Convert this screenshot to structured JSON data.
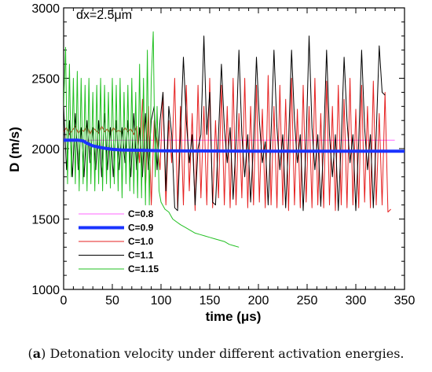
{
  "chart_data": {
    "type": "line",
    "annotation": "dx=2.5μm",
    "xlabel": "time (μs)",
    "ylabel": "D (m/s)",
    "xlim": [
      0,
      350
    ],
    "ylim": [
      1000,
      3000
    ],
    "xticks": [
      0,
      50,
      100,
      150,
      200,
      250,
      300,
      350
    ],
    "yticks": [
      1000,
      1500,
      2000,
      2500,
      3000
    ],
    "legend_position": "lower-left",
    "series": [
      {
        "name": "C=0.8",
        "color": "#ff66ff",
        "width": 1,
        "x": [
          0,
          340
        ],
        "y": [
          2060,
          2060
        ]
      },
      {
        "name": "C=0.9",
        "color": "#1a33ff",
        "width": 4,
        "x": [
          0,
          15,
          20,
          25,
          30,
          40,
          50,
          60,
          80,
          100,
          150,
          200,
          250,
          300,
          350
        ],
        "y": [
          2060,
          2060,
          2055,
          2035,
          2020,
          2005,
          1995,
          1990,
          1988,
          1985,
          1983,
          1982,
          1982,
          1982,
          1982
        ]
      },
      {
        "name": "C=1.0",
        "color": "#e62020",
        "width": 1,
        "x": [
          0,
          3,
          6,
          9,
          12,
          15,
          18,
          21,
          24,
          27,
          30,
          33,
          36,
          39,
          42,
          45,
          48,
          51,
          54,
          57,
          60,
          63,
          66,
          69,
          72,
          75,
          78,
          81,
          84,
          87,
          90,
          93,
          96,
          99,
          102,
          105,
          108,
          111,
          114,
          117,
          120,
          123,
          126,
          129,
          132,
          135,
          138,
          141,
          144,
          147,
          150,
          153,
          156,
          159,
          162,
          165,
          168,
          171,
          174,
          177,
          180,
          183,
          186,
          189,
          192,
          195,
          198,
          201,
          204,
          207,
          210,
          213,
          216,
          219,
          222,
          225,
          228,
          231,
          234,
          237,
          240,
          243,
          246,
          249,
          252,
          255,
          258,
          261,
          264,
          267,
          270,
          273,
          276,
          279,
          282,
          285,
          288,
          291,
          294,
          297,
          300,
          303,
          306,
          309,
          312,
          315,
          318,
          321,
          324,
          327,
          330,
          333,
          336
        ],
        "y": [
          2120,
          2150,
          2100,
          2130,
          2160,
          2110,
          2140,
          2120,
          2170,
          2100,
          2150,
          2130,
          2110,
          2160,
          2120,
          2140,
          2100,
          2150,
          2120,
          2130,
          2110,
          2150,
          2120,
          2140,
          2100,
          2160,
          1900,
          2350,
          1700,
          2300,
          1600,
          2200,
          2050,
          1850,
          2400,
          1600,
          2200,
          1900,
          2500,
          1580,
          2300,
          1600,
          2450,
          1700,
          2250,
          1560,
          2450,
          1650,
          2300,
          1600,
          2500,
          1580,
          2200,
          1650,
          2450,
          1600,
          2300,
          1580,
          2500,
          1600,
          2250,
          1650,
          2500,
          1580,
          2300,
          1600,
          2450,
          1620,
          2280,
          1580,
          2520,
          1600,
          2300,
          1580,
          2450,
          1600,
          2350,
          1560,
          2500,
          1600,
          2280,
          1580,
          2450,
          1620,
          2300,
          1580,
          2500,
          1600,
          2250,
          1580,
          2480,
          1600,
          2300,
          1560,
          2450,
          1600,
          2350,
          1580,
          2500,
          1600,
          2280,
          1580,
          2450,
          1620,
          2300,
          1580,
          2480,
          1600,
          2250,
          1600,
          2400,
          1550,
          1570
        ]
      },
      {
        "name": "C=1.1",
        "color": "#000000",
        "width": 1,
        "x": [
          0,
          3,
          6,
          9,
          12,
          15,
          18,
          21,
          24,
          27,
          30,
          33,
          36,
          39,
          42,
          45,
          48,
          51,
          54,
          57,
          60,
          63,
          66,
          69,
          72,
          75,
          78,
          81,
          84,
          87,
          90,
          93,
          96,
          99,
          102,
          105,
          108,
          111,
          114,
          117,
          120,
          123,
          126,
          129,
          132,
          135,
          138,
          141,
          144,
          147,
          150,
          153,
          156,
          159,
          162,
          165,
          168,
          171,
          174,
          177,
          180,
          183,
          186,
          189,
          192,
          195,
          198,
          201,
          204,
          207,
          210,
          213,
          216,
          219,
          222,
          225,
          228,
          231,
          234,
          237,
          240,
          243,
          246,
          249,
          252,
          255,
          258,
          261,
          264,
          267,
          270,
          273,
          276,
          279,
          282,
          285,
          288,
          291,
          294,
          297,
          300,
          303,
          306,
          309,
          312,
          315,
          318,
          321,
          324,
          327,
          330
        ],
        "y": [
          2300,
          1850,
          2200,
          1800,
          2250,
          1850,
          2150,
          1800,
          2200,
          1900,
          2150,
          1850,
          2200,
          1800,
          2250,
          1850,
          2150,
          1800,
          2200,
          1850,
          2150,
          1900,
          2200,
          1800,
          2250,
          1850,
          2150,
          1800,
          2250,
          1850,
          2200,
          2300,
          1850,
          2200,
          2400,
          1700,
          2300,
          2100,
          1580,
          1560,
          2100,
          2650,
          2200,
          1900,
          2100,
          1600,
          2000,
          2100,
          2800,
          2100,
          2400,
          1620,
          1600,
          2100,
          2600,
          2150,
          1900,
          2150,
          1640,
          2050,
          2700,
          2100,
          1800,
          2100,
          1620,
          2050,
          2650,
          2200,
          1900,
          2050,
          1600,
          2100,
          2700,
          2150,
          1850,
          2100,
          1580,
          2050,
          2700,
          2200,
          1900,
          2100,
          1560,
          2050,
          2800,
          2150,
          1850,
          2100,
          1590,
          2050,
          2700,
          2100,
          1800,
          2100,
          1560,
          2050,
          2650,
          2200,
          1900,
          2100,
          1560,
          2050,
          2700,
          2150,
          1850,
          2100,
          1580,
          2100,
          2730,
          2400,
          2380
        ]
      },
      {
        "name": "C=1.15",
        "color": "#22c022",
        "width": 1,
        "x": [
          0,
          2,
          4,
          6,
          8,
          10,
          12,
          14,
          16,
          18,
          20,
          22,
          24,
          26,
          28,
          30,
          32,
          34,
          36,
          38,
          40,
          42,
          44,
          46,
          48,
          50,
          52,
          54,
          56,
          58,
          60,
          62,
          64,
          66,
          68,
          70,
          72,
          74,
          76,
          78,
          80,
          82,
          84,
          86,
          88,
          90,
          92,
          94,
          96,
          98,
          100,
          104,
          108,
          112,
          116,
          120,
          125,
          130,
          135,
          140,
          145,
          150,
          155,
          160,
          165,
          170,
          175,
          180
        ],
        "y": [
          2300,
          2720,
          1750,
          2600,
          1800,
          2500,
          1750,
          2550,
          1700,
          2500,
          1750,
          2450,
          1700,
          2500,
          1750,
          2400,
          1700,
          2450,
          1750,
          2500,
          1700,
          2450,
          1750,
          2400,
          1720,
          2500,
          1750,
          2450,
          1700,
          2500,
          1650,
          2400,
          1750,
          2450,
          1700,
          2500,
          1680,
          2400,
          1650,
          2600,
          1650,
          2500,
          1600,
          2700,
          1600,
          2500,
          2830,
          1800,
          2300,
          1700,
          1620,
          1570,
          1550,
          1500,
          1480,
          1460,
          1440,
          1420,
          1400,
          1390,
          1380,
          1370,
          1360,
          1350,
          1340,
          1320,
          1310,
          1300
        ]
      }
    ]
  },
  "caption": {
    "label": "a",
    "text": "Detonation velocity under different activation energies."
  }
}
